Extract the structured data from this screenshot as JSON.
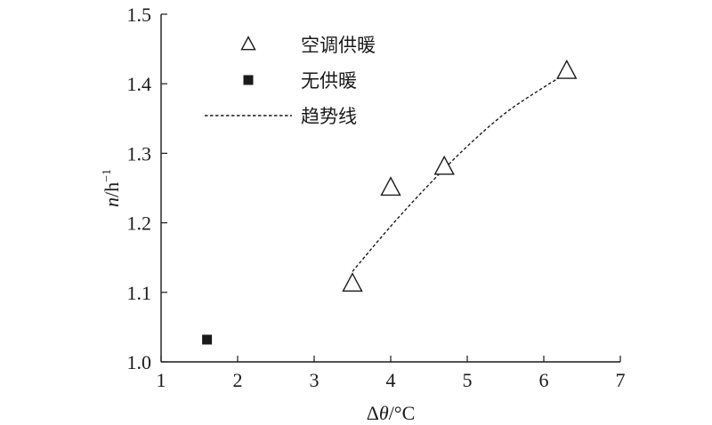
{
  "chart_data": {
    "type": "scatter",
    "xlim": [
      1,
      7
    ],
    "ylim": [
      1.0,
      1.5
    ],
    "x_ticks": [
      "1",
      "2",
      "3",
      "4",
      "5",
      "6",
      "7"
    ],
    "y_ticks": [
      "1.0",
      "1.1",
      "1.2",
      "1.3",
      "1.4",
      "1.5"
    ],
    "xlabel": {
      "prefix": "Δ",
      "italic": "θ",
      "suffix": "/°C"
    },
    "ylabel": {
      "italic": "n",
      "unit": "/h",
      "sup": "−1"
    },
    "grid": false,
    "legend_position": "top-left",
    "series": [
      {
        "name": "空调供暖",
        "marker": "open-triangle",
        "points": [
          {
            "x": 3.5,
            "y": 1.112
          },
          {
            "x": 4.0,
            "y": 1.25
          },
          {
            "x": 4.7,
            "y": 1.28
          },
          {
            "x": 6.3,
            "y": 1.418
          }
        ]
      },
      {
        "name": "无供暖",
        "marker": "filled-square",
        "points": [
          {
            "x": 1.6,
            "y": 1.032
          }
        ]
      },
      {
        "name": "趋势线",
        "marker": "dashed-line",
        "curve": [
          {
            "x": 3.5,
            "y": 1.13
          },
          {
            "x": 4.0,
            "y": 1.195
          },
          {
            "x": 4.5,
            "y": 1.255
          },
          {
            "x": 5.0,
            "y": 1.31
          },
          {
            "x": 5.5,
            "y": 1.358
          },
          {
            "x": 6.0,
            "y": 1.395
          },
          {
            "x": 6.3,
            "y": 1.415
          }
        ]
      }
    ]
  }
}
